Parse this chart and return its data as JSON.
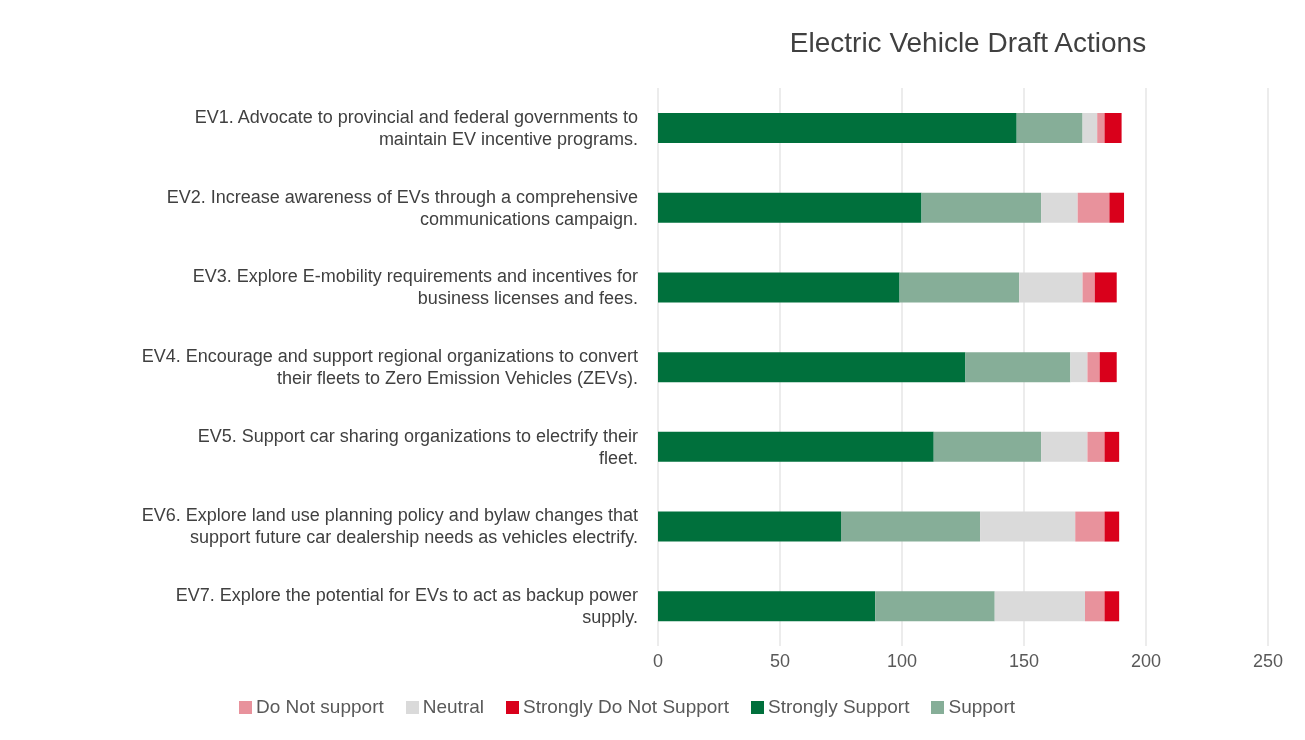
{
  "chart_data": {
    "type": "bar",
    "orientation": "horizontal",
    "stacked": true,
    "title": "Electric Vehicle Draft Actions",
    "categories": [
      "EV1. Advocate to provincial and federal governments to maintain EV incentive programs.",
      "EV2. Increase awareness of EVs through a comprehensive communications campaign.",
      "EV3. Explore E-mobility requirements and incentives for business licenses and fees.",
      "EV4. Encourage and support regional organizations to convert their fleets to Zero Emission Vehicles (ZEVs).",
      "EV5. Support car sharing organizations to electrify their fleet.",
      "EV6. Explore land use planning policy and bylaw changes that support future car dealership needs as vehicles electrify.",
      "EV7. Explore the potential for EVs to act as backup power supply."
    ],
    "series": [
      {
        "name": "Strongly Support",
        "color": "#00703c",
        "values": [
          147,
          108,
          99,
          126,
          113,
          75,
          89
        ]
      },
      {
        "name": "Support",
        "color": "#86ae98",
        "values": [
          27,
          49,
          49,
          43,
          44,
          57,
          49
        ]
      },
      {
        "name": "Neutral",
        "color": "#dadada",
        "values": [
          6,
          15,
          26,
          7,
          19,
          39,
          37
        ]
      },
      {
        "name": "Do Not support",
        "color": "#e8929c",
        "values": [
          3,
          13,
          5,
          5,
          7,
          12,
          8
        ]
      },
      {
        "name": "Strongly Do Not Support",
        "color": "#d9001b",
        "values": [
          7,
          6,
          9,
          7,
          6,
          6,
          6
        ]
      }
    ],
    "xlim": [
      0,
      250
    ],
    "xticks": [
      0,
      50,
      100,
      150,
      200,
      250
    ],
    "grid": "x",
    "legend": "bottom"
  }
}
